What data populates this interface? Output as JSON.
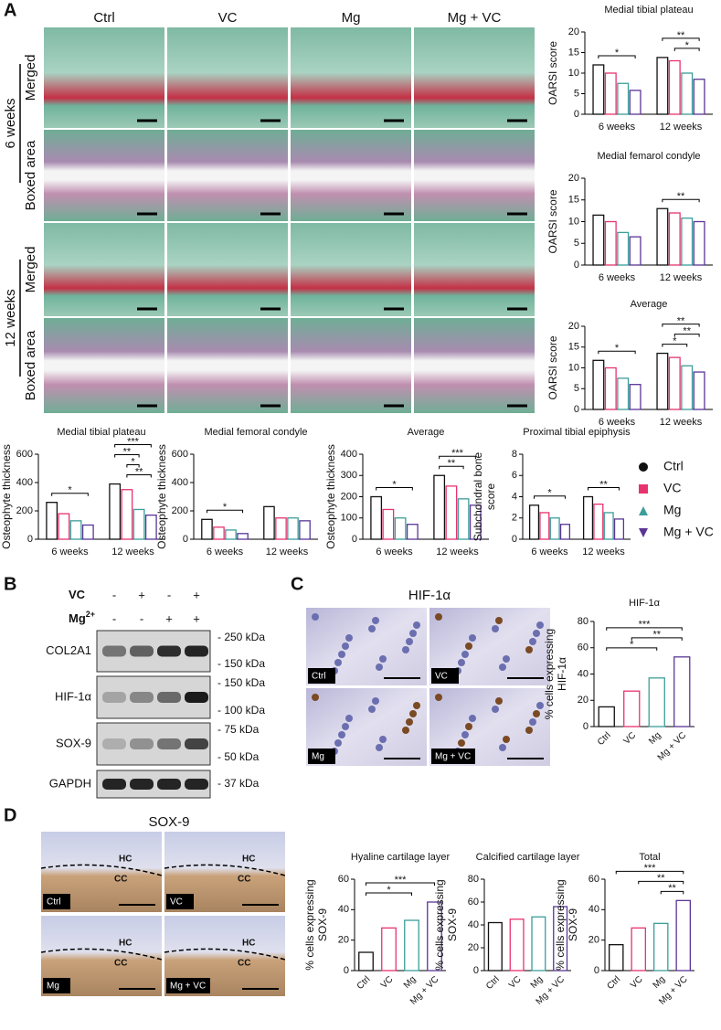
{
  "figure": {
    "panel_labels": [
      "A",
      "B",
      "C",
      "D"
    ],
    "a": {
      "columns": [
        "Ctrl",
        "VC",
        "Mg",
        "Mg + VC"
      ],
      "rows": [
        {
          "time": "6 weeks",
          "views": [
            "Merged",
            "Boxed area"
          ]
        },
        {
          "time": "12 weeks",
          "views": [
            "Merged",
            "Boxed area"
          ]
        }
      ]
    },
    "b": {
      "treatments": [
        {
          "name": "VC",
          "signs": [
            "-",
            "+",
            "-",
            "+"
          ]
        },
        {
          "name": "Mg",
          "sup": "2+",
          "signs": [
            "-",
            "-",
            "+",
            "+"
          ]
        }
      ],
      "blots": [
        {
          "name": "COL2A1",
          "markers": [
            "- 250 kDa",
            "- 150 kDa"
          ]
        },
        {
          "name": "HIF-1α",
          "markers": [
            "- 150 kDa",
            "- 100 kDa"
          ]
        },
        {
          "name": "SOX-9",
          "markers": [
            "- 75 kDa",
            "- 50 kDa"
          ]
        },
        {
          "name": "GAPDH",
          "markers": [
            "- 37 kDa"
          ]
        }
      ]
    },
    "c": {
      "title": "HIF-1α",
      "image_labels": [
        "Ctrl",
        "VC",
        "Mg",
        "Mg + VC"
      ]
    },
    "d": {
      "title": "SOX-9",
      "image_labels": [
        "Ctrl",
        "VC",
        "Mg",
        "Mg + VC"
      ],
      "layer_labels": [
        "HC",
        "CC"
      ]
    }
  },
  "chart_data": [
    {
      "type": "bar",
      "title": "Medial tibial plateau",
      "ylabel": [
        "OARSI score"
      ],
      "categories": [
        "6 weeks",
        "12 weeks"
      ],
      "series": [
        {
          "name": "Ctrl",
          "color": "#111111",
          "marker": "circle",
          "values": [
            12,
            13.8
          ]
        },
        {
          "name": "VC",
          "color": "#e8336e",
          "marker": "square",
          "values": [
            10,
            13
          ]
        },
        {
          "name": "Mg",
          "color": "#3a9e9a",
          "marker": "triangle-up",
          "values": [
            7.5,
            10
          ]
        },
        {
          "name": "Mg + VC",
          "color": "#5b3596",
          "marker": "triangle-down",
          "values": [
            5.8,
            8.5
          ]
        }
      ],
      "ylim": [
        0,
        20
      ],
      "yticks": [
        0,
        5,
        10,
        15,
        20
      ],
      "annotations": [
        {
          "text": "*",
          "group": "6 weeks",
          "between": [
            "Ctrl",
            "Mg + VC"
          ]
        },
        {
          "text": "*",
          "group": "12 weeks",
          "between": [
            "VC",
            "Mg + VC"
          ]
        },
        {
          "text": "**",
          "group": "12 weeks",
          "between": [
            "Ctrl",
            "Mg + VC"
          ]
        }
      ]
    },
    {
      "type": "bar",
      "title": "Medial femarol condyle",
      "ylabel": [
        "OARSI score"
      ],
      "categories": [
        "6 weeks",
        "12 weeks"
      ],
      "series": [
        {
          "name": "Ctrl",
          "color": "#111111",
          "marker": "circle",
          "values": [
            11.5,
            13
          ]
        },
        {
          "name": "VC",
          "color": "#e8336e",
          "marker": "square",
          "values": [
            10,
            12
          ]
        },
        {
          "name": "Mg",
          "color": "#3a9e9a",
          "marker": "triangle-up",
          "values": [
            7.5,
            10.8
          ]
        },
        {
          "name": "Mg + VC",
          "color": "#5b3596",
          "marker": "triangle-down",
          "values": [
            6.5,
            10
          ]
        }
      ],
      "ylim": [
        0,
        20
      ],
      "yticks": [
        0,
        5,
        10,
        15,
        20
      ],
      "annotations": [
        {
          "text": "**",
          "group": "12 weeks",
          "between": [
            "Ctrl",
            "Mg + VC"
          ]
        }
      ]
    },
    {
      "type": "bar",
      "title": "Average",
      "ylabel": [
        "OARSI score"
      ],
      "categories": [
        "6 weeks",
        "12 weeks"
      ],
      "series": [
        {
          "name": "Ctrl",
          "color": "#111111",
          "marker": "circle",
          "values": [
            11.8,
            13.5
          ]
        },
        {
          "name": "VC",
          "color": "#e8336e",
          "marker": "square",
          "values": [
            10,
            12.5
          ]
        },
        {
          "name": "Mg",
          "color": "#3a9e9a",
          "marker": "triangle-up",
          "values": [
            7.5,
            10.5
          ]
        },
        {
          "name": "Mg + VC",
          "color": "#5b3596",
          "marker": "triangle-down",
          "values": [
            6,
            9
          ]
        }
      ],
      "ylim": [
        0,
        20
      ],
      "yticks": [
        0,
        5,
        10,
        15,
        20
      ],
      "annotations": [
        {
          "text": "*",
          "group": "6 weeks",
          "between": [
            "Ctrl",
            "Mg + VC"
          ]
        },
        {
          "text": "*",
          "group": "12 weeks",
          "between": [
            "Ctrl",
            "Mg"
          ]
        },
        {
          "text": "**",
          "group": "12 weeks",
          "between": [
            "VC",
            "Mg + VC"
          ]
        },
        {
          "text": "**",
          "group": "12 weeks",
          "between": [
            "Ctrl",
            "Mg + VC"
          ]
        }
      ]
    },
    {
      "type": "bar",
      "title": "Medial tibial plateau",
      "ylabel": [
        "Osteophyte thickness"
      ],
      "categories": [
        "6 weeks",
        "12 weeks"
      ],
      "series": [
        {
          "name": "Ctrl",
          "color": "#111111",
          "marker": "circle",
          "values": [
            260,
            390
          ]
        },
        {
          "name": "VC",
          "color": "#e8336e",
          "marker": "square",
          "values": [
            180,
            350
          ]
        },
        {
          "name": "Mg",
          "color": "#3a9e9a",
          "marker": "triangle-up",
          "values": [
            130,
            210
          ]
        },
        {
          "name": "Mg + VC",
          "color": "#5b3596",
          "marker": "triangle-down",
          "values": [
            100,
            170
          ]
        }
      ],
      "ylim": [
        0,
        600
      ],
      "yticks": [
        0,
        200,
        400,
        600
      ],
      "annotations": [
        {
          "text": "*",
          "group": "6 weeks",
          "between": [
            "Ctrl",
            "Mg + VC"
          ]
        },
        {
          "text": "**",
          "group": "12 weeks",
          "between": [
            "VC",
            "Mg + VC"
          ]
        },
        {
          "text": "*",
          "group": "12 weeks",
          "between": [
            "VC",
            "Mg"
          ]
        },
        {
          "text": "**",
          "group": "12 weeks",
          "between": [
            "Ctrl",
            "Mg"
          ]
        },
        {
          "text": "***",
          "group": "12 weeks",
          "between": [
            "Ctrl",
            "Mg + VC"
          ]
        }
      ]
    },
    {
      "type": "bar",
      "title": "Medial femoral condyle",
      "ylabel": [
        "Osteophyte thickness"
      ],
      "categories": [
        "6 weeks",
        "12 weeks"
      ],
      "series": [
        {
          "name": "Ctrl",
          "color": "#111111",
          "marker": "circle",
          "values": [
            140,
            230
          ]
        },
        {
          "name": "VC",
          "color": "#e8336e",
          "marker": "square",
          "values": [
            85,
            150
          ]
        },
        {
          "name": "Mg",
          "color": "#3a9e9a",
          "marker": "triangle-up",
          "values": [
            65,
            150
          ]
        },
        {
          "name": "Mg + VC",
          "color": "#5b3596",
          "marker": "triangle-down",
          "values": [
            40,
            130
          ]
        }
      ],
      "ylim": [
        0,
        600
      ],
      "yticks": [
        0,
        200,
        400,
        600
      ],
      "annotations": [
        {
          "text": "*",
          "group": "6 weeks",
          "between": [
            "Ctrl",
            "Mg + VC"
          ]
        }
      ]
    },
    {
      "type": "bar",
      "title": "Average",
      "ylabel": [
        "Osteophyte thickness"
      ],
      "categories": [
        "6 weeks",
        "12 weeks"
      ],
      "series": [
        {
          "name": "Ctrl",
          "color": "#111111",
          "marker": "circle",
          "values": [
            200,
            300
          ]
        },
        {
          "name": "VC",
          "color": "#e8336e",
          "marker": "square",
          "values": [
            140,
            250
          ]
        },
        {
          "name": "Mg",
          "color": "#3a9e9a",
          "marker": "triangle-up",
          "values": [
            100,
            190
          ]
        },
        {
          "name": "Mg + VC",
          "color": "#5b3596",
          "marker": "triangle-down",
          "values": [
            70,
            160
          ]
        }
      ],
      "ylim": [
        0,
        400
      ],
      "yticks": [
        0,
        100,
        200,
        300,
        400
      ],
      "annotations": [
        {
          "text": "*",
          "group": "6 weeks",
          "between": [
            "Ctrl",
            "Mg + VC"
          ]
        },
        {
          "text": "**",
          "group": "12 weeks",
          "between": [
            "Ctrl",
            "Mg"
          ]
        },
        {
          "text": "***",
          "group": "12 weeks",
          "between": [
            "Ctrl",
            "Mg + VC"
          ]
        }
      ]
    },
    {
      "type": "bar",
      "title": "Proximal tibial epiphysis",
      "ylabel": [
        "Subchondral bone",
        "score"
      ],
      "categories": [
        "6 weeks",
        "12 weeks"
      ],
      "series": [
        {
          "name": "Ctrl",
          "color": "#111111",
          "marker": "circle",
          "values": [
            3.2,
            4
          ]
        },
        {
          "name": "VC",
          "color": "#e8336e",
          "marker": "square",
          "values": [
            2.5,
            3.3
          ]
        },
        {
          "name": "Mg",
          "color": "#3a9e9a",
          "marker": "triangle-up",
          "values": [
            2,
            2.5
          ]
        },
        {
          "name": "Mg + VC",
          "color": "#5b3596",
          "marker": "triangle-down",
          "values": [
            1.4,
            1.9
          ]
        }
      ],
      "ylim": [
        0,
        8
      ],
      "yticks": [
        0,
        2,
        4,
        6,
        8
      ],
      "legend": "right",
      "annotations": [
        {
          "text": "*",
          "group": "6 weeks",
          "between": [
            "Ctrl",
            "Mg + VC"
          ]
        },
        {
          "text": "**",
          "group": "12 weeks",
          "between": [
            "Ctrl",
            "Mg + VC"
          ]
        }
      ]
    },
    {
      "type": "bar",
      "title": "HIF-1α",
      "ylabel": [
        "% cells expressing",
        "HIF-1α"
      ],
      "categories": [
        "Ctrl",
        "VC",
        "Mg",
        "Mg + VC"
      ],
      "values": [
        15,
        27,
        37,
        53
      ],
      "colors": [
        "#111111",
        "#e8336e",
        "#3a9e9a",
        "#5b3596"
      ],
      "ylim": [
        0,
        80
      ],
      "yticks": [
        0,
        20,
        40,
        60,
        80
      ],
      "annotations": [
        {
          "text": "*",
          "between": [
            "Ctrl",
            "Mg"
          ]
        },
        {
          "text": "**",
          "between": [
            "VC",
            "Mg + VC"
          ]
        },
        {
          "text": "***",
          "between": [
            "Ctrl",
            "Mg + VC"
          ]
        }
      ]
    },
    {
      "type": "bar",
      "title": "Hyaline cartilage layer",
      "ylabel": [
        "% cells expressing",
        "SOX-9"
      ],
      "categories": [
        "Ctrl",
        "VC",
        "Mg",
        "Mg + VC"
      ],
      "values": [
        12,
        28,
        33,
        45
      ],
      "colors": [
        "#111111",
        "#e8336e",
        "#3a9e9a",
        "#5b3596"
      ],
      "ylim": [
        0,
        60
      ],
      "yticks": [
        0,
        20,
        40,
        60
      ],
      "annotations": [
        {
          "text": "*",
          "between": [
            "Ctrl",
            "Mg"
          ]
        },
        {
          "text": "***",
          "between": [
            "Ctrl",
            "Mg + VC"
          ]
        }
      ]
    },
    {
      "type": "bar",
      "title": "Calcified cartilage layer",
      "ylabel": [
        "% cells expressing",
        "SOX-9"
      ],
      "categories": [
        "Ctrl",
        "VC",
        "Mg",
        "Mg + VC"
      ],
      "values": [
        42,
        45,
        47,
        56
      ],
      "colors": [
        "#111111",
        "#e8336e",
        "#3a9e9a",
        "#5b3596"
      ],
      "ylim": [
        0,
        80
      ],
      "yticks": [
        0,
        20,
        40,
        60,
        80
      ],
      "annotations": []
    },
    {
      "type": "bar",
      "title": "Total",
      "ylabel": [
        "% cells expressing",
        "SOX-9"
      ],
      "categories": [
        "Ctrl",
        "VC",
        "Mg",
        "Mg + VC"
      ],
      "values": [
        17,
        28,
        31,
        46
      ],
      "colors": [
        "#111111",
        "#e8336e",
        "#3a9e9a",
        "#5b3596"
      ],
      "ylim": [
        0,
        60
      ],
      "yticks": [
        0,
        20,
        40,
        60
      ],
      "annotations": [
        {
          "text": "**",
          "between": [
            "Mg",
            "Mg + VC"
          ]
        },
        {
          "text": "**",
          "between": [
            "VC",
            "Mg + VC"
          ]
        },
        {
          "text": "***",
          "between": [
            "Ctrl",
            "Mg + VC"
          ]
        }
      ]
    }
  ]
}
